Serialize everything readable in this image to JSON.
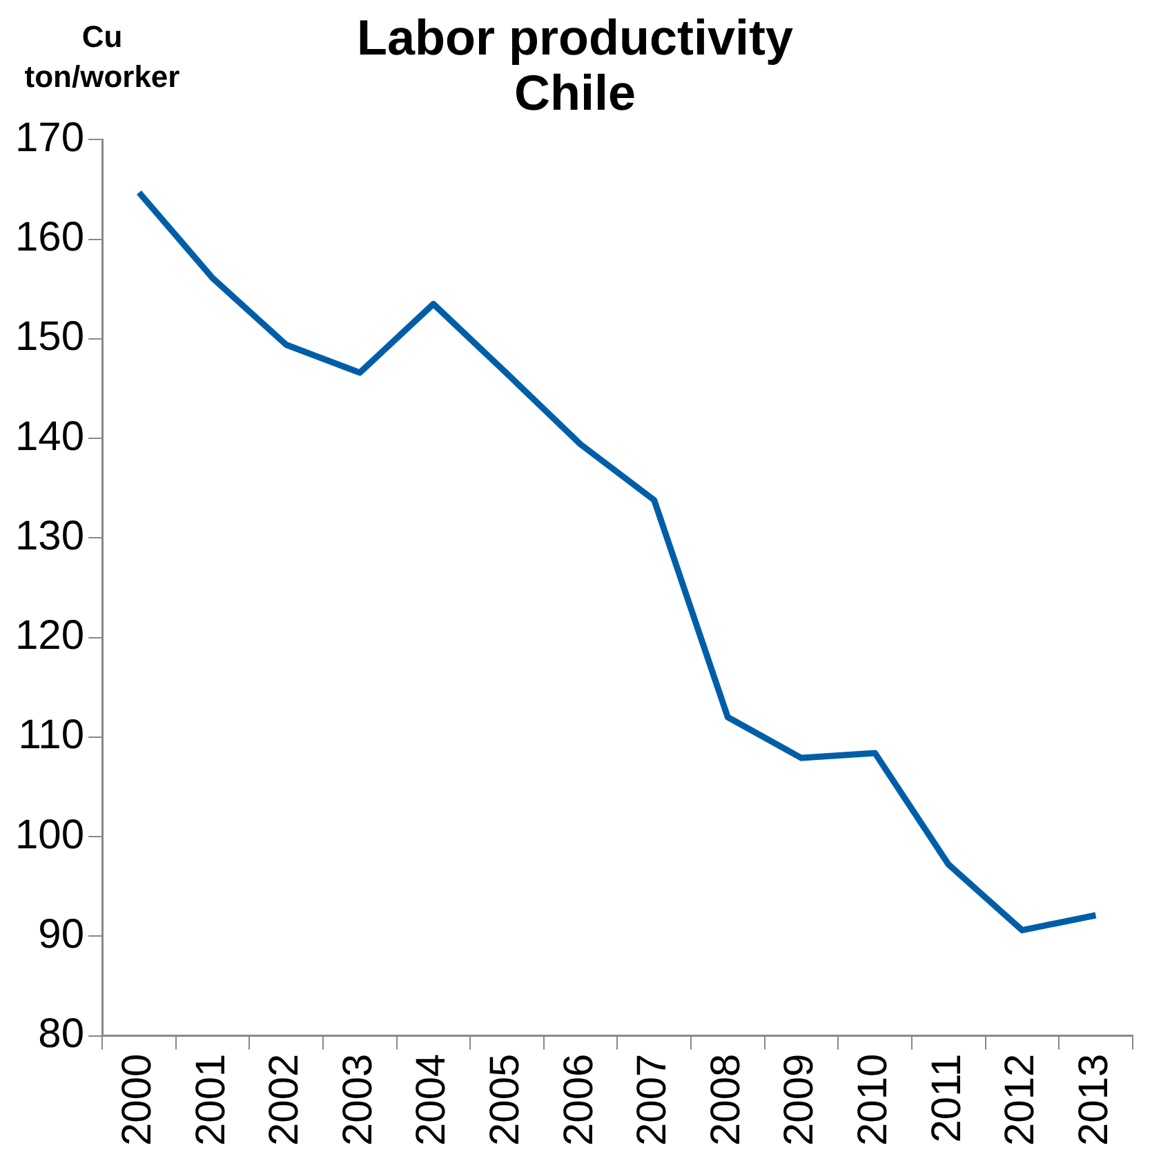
{
  "chart_data": {
    "type": "line",
    "title": "Labor productivity\nChile",
    "ylabel": "Cu\nton/worker",
    "categories": [
      "2000",
      "2001",
      "2002",
      "2003",
      "2004",
      "2005",
      "2006",
      "2007",
      "2008",
      "2009",
      "2010",
      "2011",
      "2012",
      "2013"
    ],
    "series": [
      {
        "color": "#005ea8",
        "values": [
          164.7,
          156.1,
          149.4,
          146.6,
          153.5,
          146.5,
          139.4,
          133.8,
          112.0,
          107.9,
          108.4,
          97.2,
          90.6,
          92.1
        ]
      }
    ],
    "ylim": [
      80,
      170
    ],
    "yticks": [
      80,
      90,
      100,
      110,
      120,
      130,
      140,
      150,
      160,
      170
    ],
    "grid": false,
    "legend": false,
    "marker": "none",
    "line_style": "solid"
  }
}
